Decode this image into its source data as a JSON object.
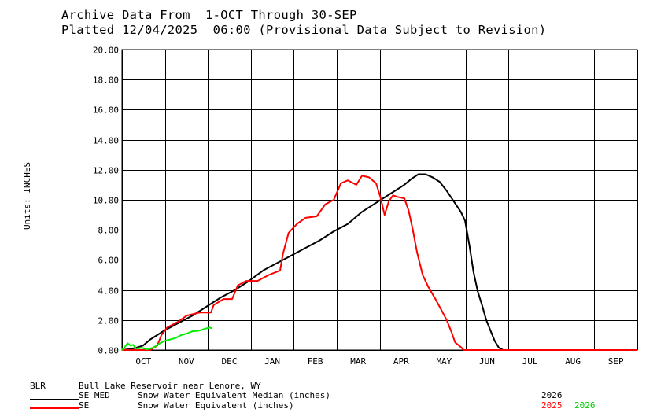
{
  "header": {
    "title_line1": "Archive Data From  1-OCT Through 30-SEP",
    "title_line2": "Platted 12/04/2025  06:00 (Provisional Data Subject to Revision)"
  },
  "chart_data": {
    "type": "line",
    "title": "Archive Data From  1-OCT Through 30-SEP",
    "subtitle": "Platted 12/04/2025  06:00 (Provisional Data Subject to Revision)",
    "xlabel": "",
    "ylabel": "Units: INCHES",
    "x_unit": "day of water year (0 = 1-OCT)",
    "xlim": [
      0,
      365
    ],
    "ylim": [
      0,
      20
    ],
    "grid": true,
    "y_ticks": [
      "0.00",
      "2.00",
      "4.00",
      "6.00",
      "8.00",
      "10.00",
      "12.00",
      "14.00",
      "16.00",
      "18.00",
      "20.00"
    ],
    "x_ticks": [
      "OCT",
      "NOV",
      "DEC",
      "JAN",
      "FEB",
      "MAR",
      "APR",
      "MAY",
      "JUN",
      "JUL",
      "AUG",
      "SEP"
    ],
    "legend_position": "bottom",
    "station": {
      "code": "BLR",
      "name": "Bull Lake Reservoir near Lenore, WY"
    },
    "series": [
      {
        "name": "SE_MED",
        "description": "Snow Water Equivalent Median (inches)",
        "years": [
          "2026"
        ],
        "color": "#000000",
        "points": [
          [
            0,
            0
          ],
          [
            5,
            0.05
          ],
          [
            10,
            0.15
          ],
          [
            15,
            0.3
          ],
          [
            20,
            0.7
          ],
          [
            25,
            1.0
          ],
          [
            30,
            1.3
          ],
          [
            40,
            1.8
          ],
          [
            50,
            2.3
          ],
          [
            60,
            2.9
          ],
          [
            70,
            3.5
          ],
          [
            80,
            4.0
          ],
          [
            90,
            4.6
          ],
          [
            100,
            5.3
          ],
          [
            110,
            5.8
          ],
          [
            120,
            6.3
          ],
          [
            130,
            6.8
          ],
          [
            140,
            7.3
          ],
          [
            150,
            7.9
          ],
          [
            160,
            8.4
          ],
          [
            170,
            9.2
          ],
          [
            180,
            9.8
          ],
          [
            190,
            10.4
          ],
          [
            200,
            11.0
          ],
          [
            205,
            11.4
          ],
          [
            210,
            11.7
          ],
          [
            215,
            11.7
          ],
          [
            220,
            11.5
          ],
          [
            225,
            11.2
          ],
          [
            230,
            10.6
          ],
          [
            235,
            9.9
          ],
          [
            240,
            9.2
          ],
          [
            243,
            8.6
          ],
          [
            246,
            7.0
          ],
          [
            249,
            5.2
          ],
          [
            252,
            3.9
          ],
          [
            255,
            3.0
          ],
          [
            258,
            2.0
          ],
          [
            261,
            1.3
          ],
          [
            264,
            0.6
          ],
          [
            267,
            0.15
          ],
          [
            270,
            0
          ],
          [
            365,
            0
          ]
        ]
      },
      {
        "name": "SE",
        "description": "Snow Water Equivalent (inches)",
        "years": [
          "2025",
          "2026"
        ],
        "colors": {
          "2025": "#ff0000",
          "2026": "#00ee00"
        },
        "sub_series": [
          {
            "year": "2025",
            "color": "#ff0000",
            "points": [
              [
                0,
                0
              ],
              [
                20,
                0
              ],
              [
                25,
                0.3
              ],
              [
                28,
                1.0
              ],
              [
                32,
                1.5
              ],
              [
                40,
                1.9
              ],
              [
                46,
                2.3
              ],
              [
                55,
                2.5
              ],
              [
                63,
                2.5
              ],
              [
                65,
                3.0
              ],
              [
                72,
                3.4
              ],
              [
                78,
                3.4
              ],
              [
                82,
                4.3
              ],
              [
                88,
                4.6
              ],
              [
                96,
                4.6
              ],
              [
                104,
                5.0
              ],
              [
                112,
                5.3
              ],
              [
                114,
                6.4
              ],
              [
                118,
                7.8
              ],
              [
                124,
                8.4
              ],
              [
                130,
                8.8
              ],
              [
                138,
                8.9
              ],
              [
                144,
                9.7
              ],
              [
                150,
                10.0
              ],
              [
                155,
                11.1
              ],
              [
                160,
                11.3
              ],
              [
                166,
                11.0
              ],
              [
                170,
                11.6
              ],
              [
                175,
                11.5
              ],
              [
                180,
                11.1
              ],
              [
                183,
                10.2
              ],
              [
                186,
                9.0
              ],
              [
                189,
                9.9
              ],
              [
                192,
                10.3
              ],
              [
                195,
                10.2
              ],
              [
                200,
                10.1
              ],
              [
                203,
                9.3
              ],
              [
                206,
                8.0
              ],
              [
                209,
                6.5
              ],
              [
                213,
                5.0
              ],
              [
                217,
                4.2
              ],
              [
                222,
                3.4
              ],
              [
                226,
                2.7
              ],
              [
                230,
                2.0
              ],
              [
                233,
                1.3
              ],
              [
                236,
                0.5
              ],
              [
                240,
                0.2
              ],
              [
                242,
                0
              ],
              [
                365,
                0
              ]
            ]
          },
          {
            "year": "2026",
            "color": "#00ee00",
            "points": [
              [
                0,
                0
              ],
              [
                2,
                0.2
              ],
              [
                4,
                0.45
              ],
              [
                6,
                0.3
              ],
              [
                8,
                0.35
              ],
              [
                10,
                0.1
              ],
              [
                14,
                0.15
              ],
              [
                18,
                0.05
              ],
              [
                22,
                0.15
              ],
              [
                26,
                0.4
              ],
              [
                30,
                0.6
              ],
              [
                34,
                0.7
              ],
              [
                38,
                0.8
              ],
              [
                42,
                1.0
              ],
              [
                46,
                1.1
              ],
              [
                50,
                1.25
              ],
              [
                55,
                1.3
              ],
              [
                58,
                1.4
              ],
              [
                62,
                1.5
              ],
              [
                64,
                1.45
              ]
            ]
          }
        ]
      }
    ]
  },
  "legend": {
    "station_code": "BLR",
    "station_name": "Bull Lake Reservoir near Lenore, WY",
    "items": [
      {
        "code": "SE_MED",
        "label": "Snow Water Equivalent Median (inches)",
        "years": [
          {
            "year": "2026",
            "color": "#000000"
          }
        ]
      },
      {
        "code": "SE",
        "label": "Snow Water Equivalent (inches)",
        "years": [
          {
            "year": "2025",
            "color": "#ff0000"
          },
          {
            "year": "2026",
            "color": "#00cc00"
          }
        ]
      }
    ]
  },
  "axis": {
    "ylabel": "Units: INCHES"
  }
}
